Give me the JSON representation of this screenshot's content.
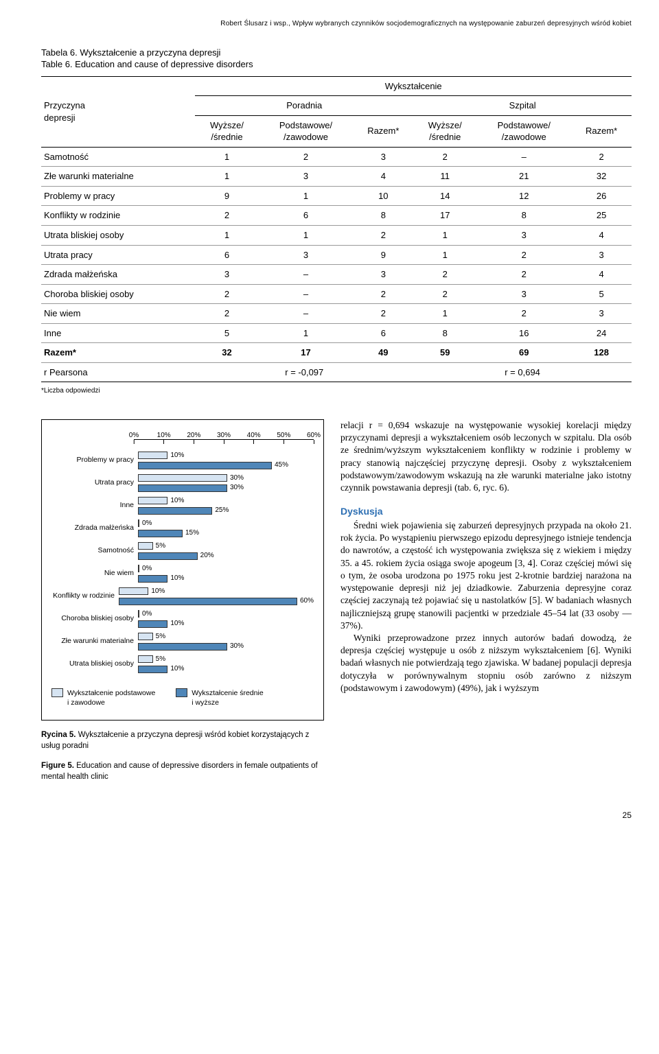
{
  "running_head": "Robert Ślusarz i wsp., Wpływ wybranych czynników socjodemograficznych na występowanie zaburzeń depresyjnych wśród kobiet",
  "table": {
    "caption_pl": "Tabela 6. Wykształcenie a przyczyna depresji",
    "caption_en": "Table 6. Education and cause of depressive disorders",
    "stub_head1": "Przyczyna",
    "stub_head2": "depresji",
    "super_head": "Wykształcenie",
    "group1": "Poradnia",
    "group2": "Szpital",
    "col1a": "Wyższe/",
    "col1b": "/średnie",
    "col2a": "Podstawowe/",
    "col2b": "/zawodowe",
    "col3": "Razem*",
    "rows": [
      {
        "label": "Samotność",
        "v": [
          "1",
          "2",
          "3",
          "2",
          "–",
          "2"
        ]
      },
      {
        "label": "Złe warunki materialne",
        "v": [
          "1",
          "3",
          "4",
          "11",
          "21",
          "32"
        ]
      },
      {
        "label": "Problemy w pracy",
        "v": [
          "9",
          "1",
          "10",
          "14",
          "12",
          "26"
        ]
      },
      {
        "label": "Konflikty w rodzinie",
        "v": [
          "2",
          "6",
          "8",
          "17",
          "8",
          "25"
        ]
      },
      {
        "label": "Utrata bliskiej osoby",
        "v": [
          "1",
          "1",
          "2",
          "1",
          "3",
          "4"
        ]
      },
      {
        "label": "Utrata pracy",
        "v": [
          "6",
          "3",
          "9",
          "1",
          "2",
          "3"
        ]
      },
      {
        "label": "Zdrada małżeńska",
        "v": [
          "3",
          "–",
          "3",
          "2",
          "2",
          "4"
        ]
      },
      {
        "label": "Choroba bliskiej osoby",
        "v": [
          "2",
          "–",
          "2",
          "2",
          "3",
          "5"
        ]
      },
      {
        "label": "Nie wiem",
        "v": [
          "2",
          "–",
          "2",
          "1",
          "2",
          "3"
        ]
      },
      {
        "label": "Inne",
        "v": [
          "5",
          "1",
          "6",
          "8",
          "16",
          "24"
        ]
      }
    ],
    "total": {
      "label": "Razem*",
      "v": [
        "32",
        "17",
        "49",
        "59",
        "69",
        "128"
      ]
    },
    "pearson_label": "r Pearsona",
    "pearson_left": "r = -0,097",
    "pearson_right": "r = 0,694",
    "footnote": "*Liczba odpowiedzi"
  },
  "chart": {
    "type": "grouped-horizontal-bar",
    "x_ticks": [
      0,
      10,
      20,
      30,
      40,
      50,
      60
    ],
    "x_max": 60,
    "series": [
      {
        "name": "Wykształcenie podstawowe i zawodowe",
        "color": "#d6e4f2"
      },
      {
        "name": "Wykształcenie średnie i wyższe",
        "color": "#4f86b8"
      }
    ],
    "categories": [
      {
        "label": "Problemy w pracy",
        "a": 10,
        "b": 45
      },
      {
        "label": "Utrata pracy",
        "a": 30,
        "b": 30
      },
      {
        "label": "Inne",
        "a": 10,
        "b": 25
      },
      {
        "label": "Zdrada małżeńska",
        "a": 0,
        "b": 15
      },
      {
        "label": "Samotność",
        "a": 5,
        "b": 20
      },
      {
        "label": "Nie wiem",
        "a": 0,
        "b": 10
      },
      {
        "label": "Konflikty w rodzinie",
        "a": 10,
        "b": 60
      },
      {
        "label": "Choroba bliskiej osoby",
        "a": 0,
        "b": 10
      },
      {
        "label": "Złe warunki materialne",
        "a": 5,
        "b": 30
      },
      {
        "label": "Utrata bliskiej osoby",
        "a": 5,
        "b": 10
      }
    ],
    "legend1": "Wykształcenie podstawowe\ni zawodowe",
    "legend2": "Wykształcenie średnie\ni wyższe",
    "caption_pl_b": "Rycina 5.",
    "caption_pl": " Wykształcenie a przyczyna depresji wśród kobiet korzystających z usług poradni",
    "caption_en_b": "Figure 5.",
    "caption_en": " Education and cause of depressive disorders in female outpatients of mental health clinic"
  },
  "text": {
    "p1": "relacji r = 0,694 wskazuje na występowanie wysokiej korelacji między przyczynami depresji a wykształceniem osób leczonych w szpitalu. Dla osób ze średnim/wyższym wykształceniem konflikty w rodzinie i problemy w pracy stanowią najczęściej przyczynę depresji. Osoby z wykształceniem podstawowym/zawodowym wskazują na złe warunki materialne jako istotny czynnik powstawania depresji (tab. 6, ryc. 6).",
    "heading": "Dyskusja",
    "p2": "Średni wiek pojawienia się zaburzeń depresyjnych przypada na około 21. rok życia. Po wystąpieniu pierwszego epizodu depresyjnego istnieje tendencja do nawrotów, a częstość ich występowania zwiększa się z wiekiem i między 35. a 45. rokiem życia osiąga swoje apogeum [3, 4]. Coraz częściej mówi się o tym, że osoba urodzona po 1975 roku jest 2-krotnie bardziej narażona na występowanie depresji niż jej dziadkowie. Zaburzenia depresyjne coraz częściej zaczynają też pojawiać się u nastolatków [5]. W badaniach własnych najliczniejszą grupę stanowili pacjentki w przedziale 45–54 lat (33 osoby — 37%).",
    "p3": "Wyniki przeprowadzone przez innych autorów badań dowodzą, że depresja częściej występuje u osób z niższym wykształceniem [6]. Wyniki badań własnych nie potwierdzają tego zjawiska. W badanej populacji depresja dotyczyła w porównywalnym stopniu osób zarówno z niższym (podstawowym i zawodowym) (49%), jak i wyższym"
  },
  "page_number": "25"
}
